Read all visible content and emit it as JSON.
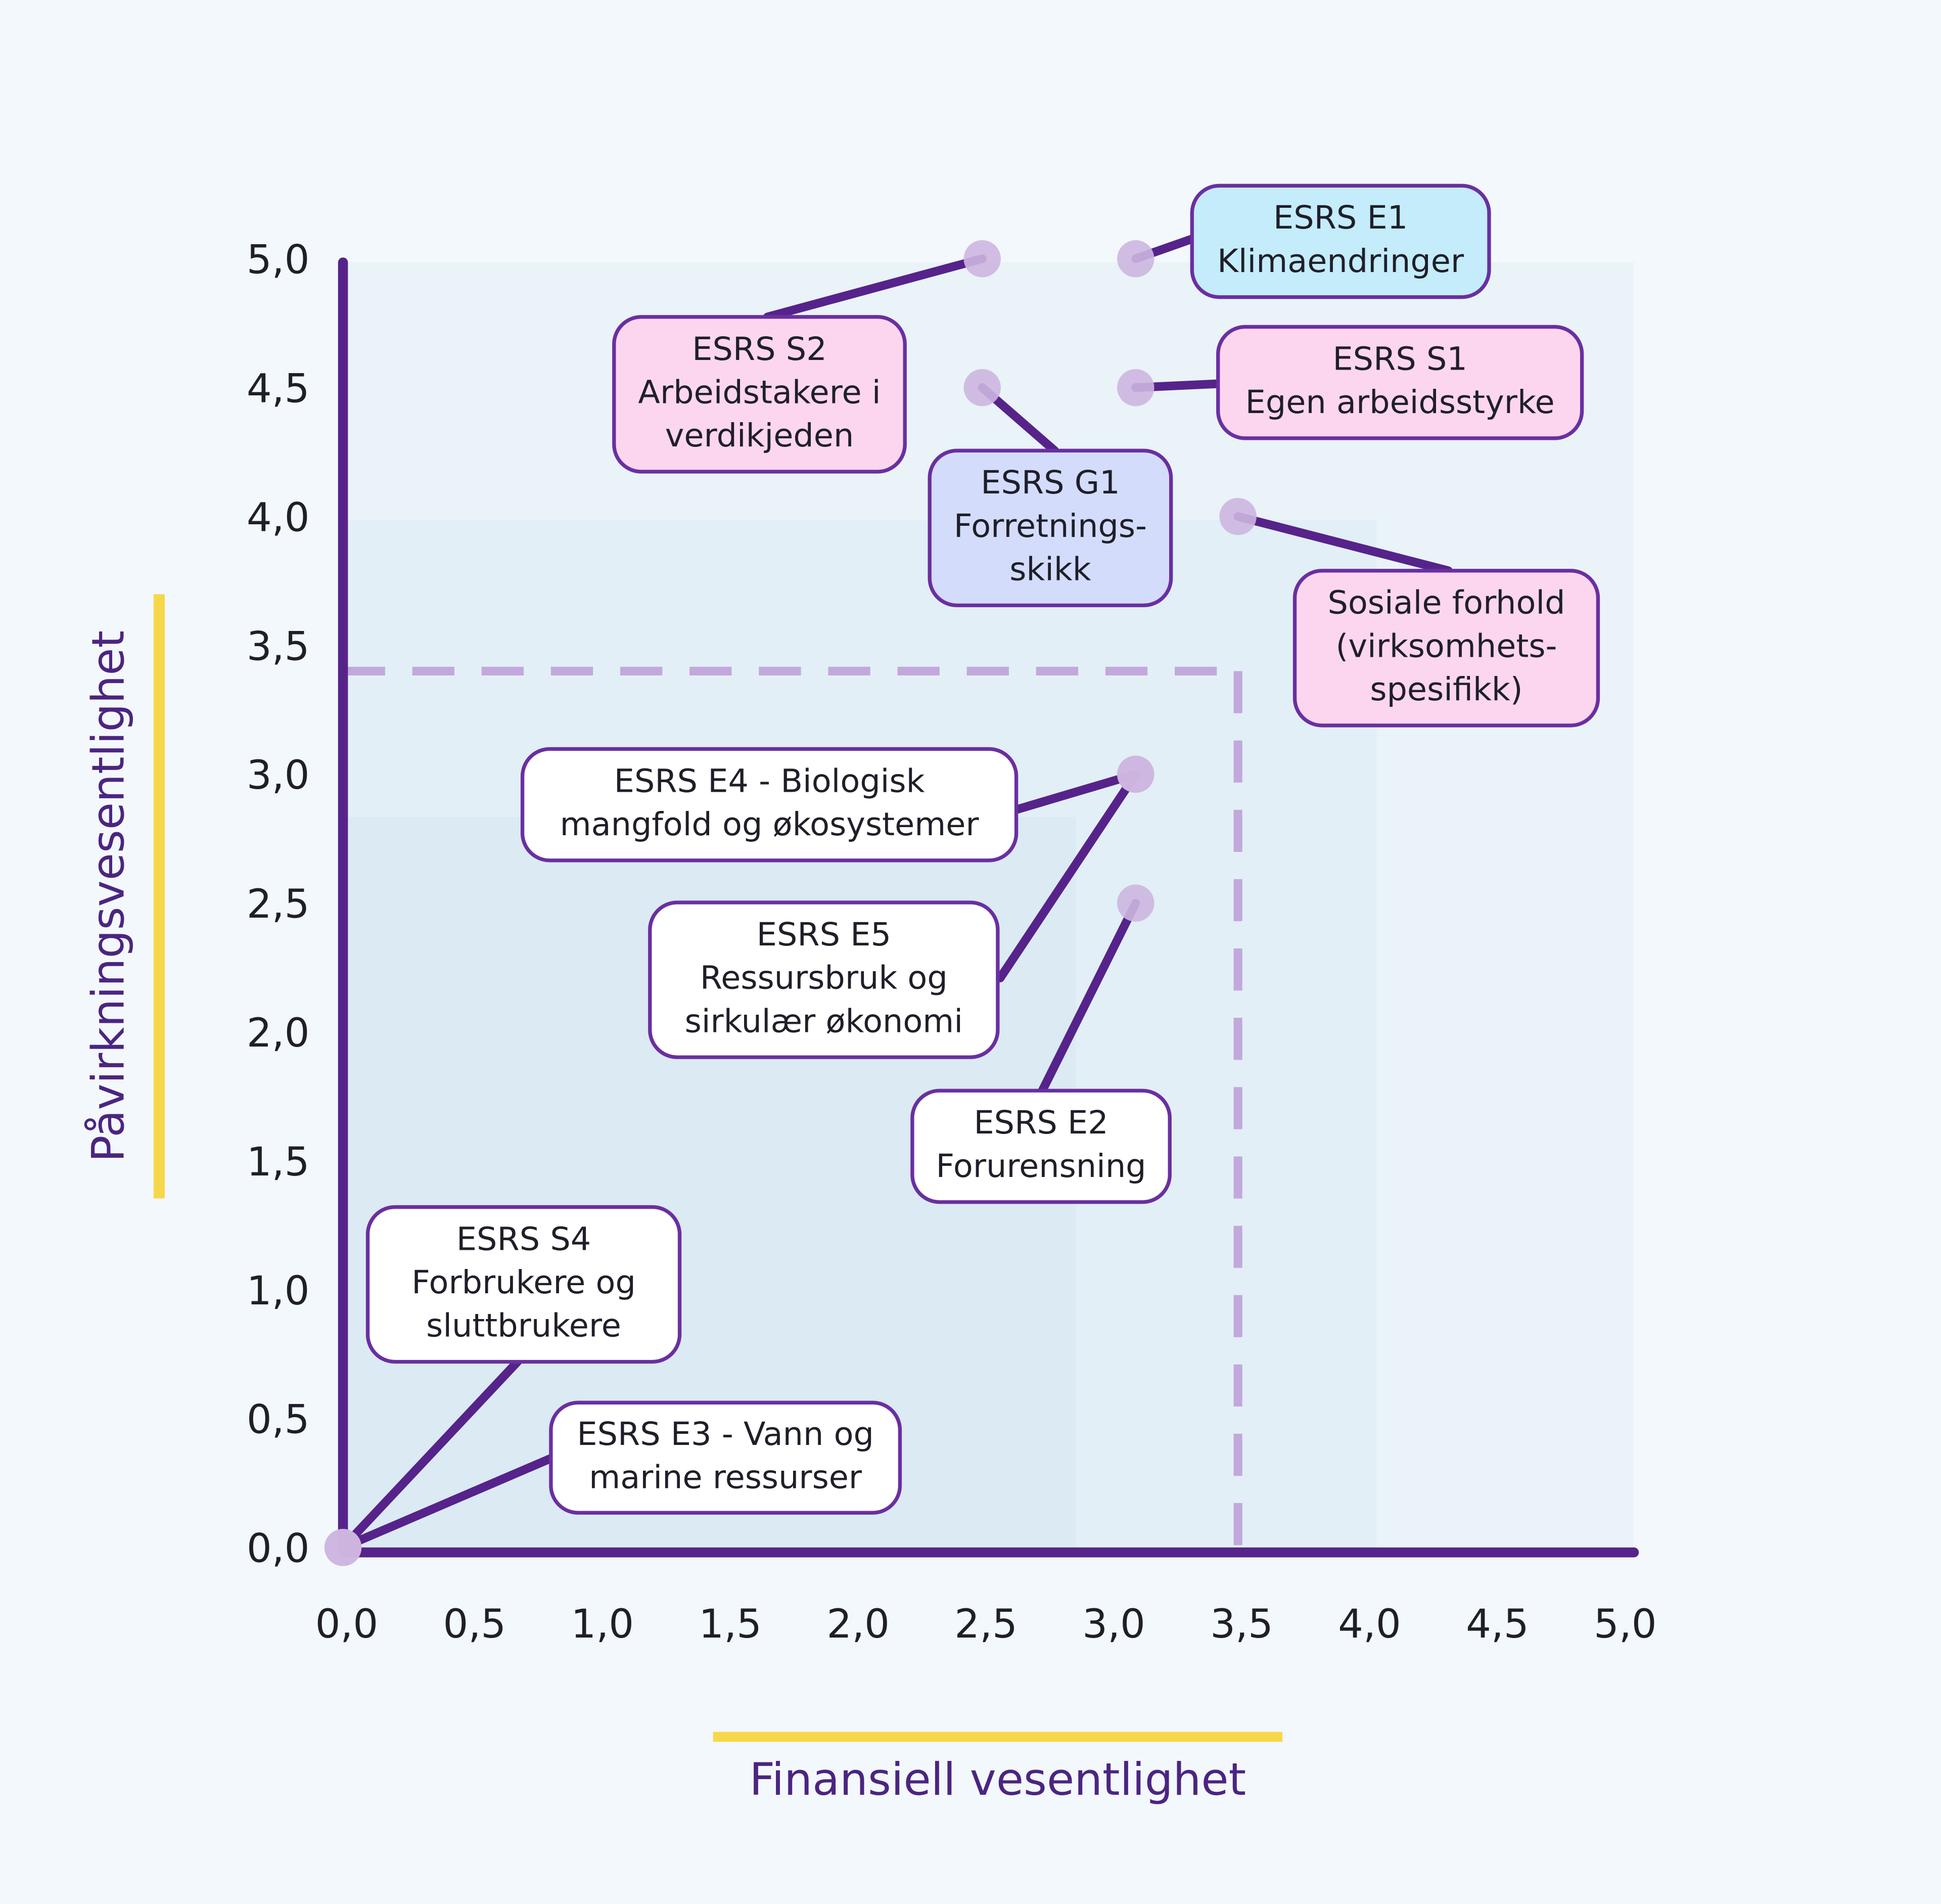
{
  "chart_data": {
    "type": "scatter",
    "x_label": "Finansiell vesentlighet",
    "y_label": "Påvirkningsvesentlighet",
    "xlim": [
      0,
      5
    ],
    "ylim": [
      0,
      5
    ],
    "xticks": [
      {
        "value": 0,
        "label": "0,0"
      },
      {
        "value": 0.5,
        "label": "0,5"
      },
      {
        "value": 1,
        "label": "1,0"
      },
      {
        "value": 1.5,
        "label": "1,5"
      },
      {
        "value": 2,
        "label": "2,0"
      },
      {
        "value": 2.5,
        "label": "2,5"
      },
      {
        "value": 3,
        "label": "3,0"
      },
      {
        "value": 3.5,
        "label": "3,5"
      },
      {
        "value": 4,
        "label": "4,0"
      },
      {
        "value": 4.5,
        "label": "4,5"
      },
      {
        "value": 5,
        "label": "5,0"
      }
    ],
    "yticks": [
      {
        "value": 0,
        "label": "0,0"
      },
      {
        "value": 0.5,
        "label": "0,5"
      },
      {
        "value": 1,
        "label": "1,0"
      },
      {
        "value": 1.5,
        "label": "1,5"
      },
      {
        "value": 2,
        "label": "2,0"
      },
      {
        "value": 2.5,
        "label": "2,5"
      },
      {
        "value": 3,
        "label": "3,0"
      },
      {
        "value": 3.5,
        "label": "3,5"
      },
      {
        "value": 4,
        "label": "4,0"
      },
      {
        "value": 4.5,
        "label": "4,5"
      },
      {
        "value": 5,
        "label": "5,0"
      }
    ],
    "threshold": {
      "x": 3.5,
      "y": 3.4
    },
    "color": "#cdb6e0",
    "x": [
      2.5,
      3.1,
      3.1,
      2.5,
      3.5,
      3.1,
      3.1,
      3.1,
      0,
      0
    ],
    "values": [
      5.0,
      5.0,
      4.5,
      4.5,
      4.0,
      3.0,
      3.0,
      2.5,
      0,
      0
    ],
    "labels": [
      [
        "ESRS S2",
        "Arbeidstakere i",
        "verdikjeden"
      ],
      [
        "ESRS E1",
        "Klimaendringer"
      ],
      [
        "ESRS S1",
        "Egen arbeidsstyrke"
      ],
      [
        "ESRS G1",
        "Forretnings-",
        "skikk"
      ],
      [
        "Sosiale forhold",
        "(virksomhets-",
        "spesifikk)"
      ],
      [
        "ESRS E4 - Biologisk",
        "mangfold og økosystemer"
      ],
      [
        "ESRS E5",
        "Ressursbruk og",
        "sirkulær økonomi"
      ],
      [
        "ESRS E2",
        "Forurensning"
      ],
      [
        "ESRS S4",
        "Forbrukere og",
        "sluttbrukere"
      ],
      [
        "ESRS E3 - Vann og",
        "marine ressurser"
      ]
    ],
    "label_colors": [
      "#fcd6ee",
      "#c4ecfb",
      "#fcd6ee",
      "#d3dcfb",
      "#fcd6ee",
      "#ffffff",
      "#ffffff",
      "#ffffff",
      "#ffffff",
      "#ffffff"
    ]
  }
}
